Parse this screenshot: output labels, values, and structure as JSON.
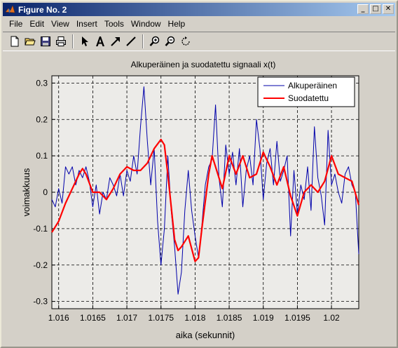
{
  "window": {
    "title": "Figure No. 2",
    "controls": {
      "minimize": "_",
      "maximize": "□",
      "close": "✕"
    }
  },
  "menu": [
    {
      "label": "File"
    },
    {
      "label": "Edit"
    },
    {
      "label": "View"
    },
    {
      "label": "Insert"
    },
    {
      "label": "Tools"
    },
    {
      "label": "Window"
    },
    {
      "label": "Help"
    }
  ],
  "toolbar_icons": [
    "new-file-icon",
    "open-folder-icon",
    "save-icon",
    "print-icon",
    "pointer-arrow-icon",
    "text-a-icon",
    "arrow-icon",
    "line-icon",
    "zoom-in-icon",
    "zoom-out-icon",
    "rotate-icon"
  ],
  "colors": {
    "original": "#0000aa",
    "filtered": "#ff0000",
    "plot_bg": "#ecebe8",
    "titlebar": "#0a246a"
  },
  "chart_data": {
    "type": "line",
    "title": "Alkuperäinen ja suodatettu signaali x(t)",
    "xlabel": "aika (sekunnit)",
    "ylabel": "voimakkuus",
    "xlim": [
      1.0159,
      1.0204
    ],
    "ylim": [
      -0.32,
      0.32
    ],
    "xticks": [
      1.016,
      1.0165,
      1.017,
      1.0175,
      1.018,
      1.0185,
      1.019,
      1.0195,
      1.02
    ],
    "xtick_labels": [
      "1.016",
      "1.0165",
      "1.017",
      "1.0175",
      "1.018",
      "1.0185",
      "1.019",
      "1.0195",
      "1.02"
    ],
    "yticks": [
      -0.3,
      -0.2,
      -0.1,
      0,
      0.1,
      0.2,
      0.3
    ],
    "ytick_labels": [
      "-0.3",
      "-0.2",
      "-0.1",
      "0",
      "0.1",
      "0.2",
      "0.3"
    ],
    "grid": true,
    "legend_position": "top-right",
    "series": [
      {
        "name": "Alkuperäinen",
        "x": [
          1.0159,
          1.01595,
          1.016,
          1.01605,
          1.0161,
          1.01615,
          1.0162,
          1.01625,
          1.0163,
          1.01635,
          1.0164,
          1.01645,
          1.0165,
          1.01655,
          1.0166,
          1.01665,
          1.0167,
          1.01675,
          1.0168,
          1.01685,
          1.0169,
          1.01695,
          1.017,
          1.01705,
          1.0171,
          1.01715,
          1.0172,
          1.01725,
          1.0173,
          1.01735,
          1.0174,
          1.01745,
          1.0175,
          1.01755,
          1.0176,
          1.01765,
          1.0177,
          1.01775,
          1.0178,
          1.01785,
          1.0179,
          1.01795,
          1.018,
          1.01805,
          1.0181,
          1.01815,
          1.0182,
          1.01825,
          1.0183,
          1.01835,
          1.0184,
          1.01845,
          1.0185,
          1.01855,
          1.0186,
          1.01865,
          1.0187,
          1.01875,
          1.0188,
          1.01885,
          1.0189,
          1.01895,
          1.019,
          1.01905,
          1.0191,
          1.01915,
          1.0192,
          1.01925,
          1.0193,
          1.01935,
          1.0194,
          1.01945,
          1.0195,
          1.01955,
          1.0196,
          1.01965,
          1.0197,
          1.01975,
          1.0198,
          1.01985,
          1.0199,
          1.01995,
          1.02,
          1.02005,
          1.0201,
          1.02015,
          1.0202,
          1.02025,
          1.0203,
          1.02035,
          1.0204
        ],
        "y": [
          -0.02,
          -0.04,
          0.01,
          -0.03,
          0.07,
          0.05,
          0.07,
          0.02,
          0.06,
          0.04,
          0.07,
          0.03,
          -0.04,
          0.02,
          -0.06,
          0.0,
          -0.02,
          0.04,
          0.02,
          -0.01,
          0.05,
          -0.01,
          0.06,
          0.03,
          0.1,
          0.05,
          0.18,
          0.29,
          0.14,
          0.02,
          0.12,
          -0.08,
          -0.2,
          -0.1,
          0.1,
          -0.05,
          -0.15,
          -0.28,
          -0.22,
          -0.05,
          0.06,
          -0.05,
          -0.12,
          -0.18,
          -0.09,
          0.02,
          0.07,
          0.09,
          0.24,
          0.04,
          -0.04,
          0.13,
          0.05,
          0.11,
          0.02,
          0.12,
          -0.04,
          0.06,
          0.1,
          0.02,
          0.2,
          0.12,
          -0.02,
          0.08,
          0.12,
          0.02,
          0.14,
          0.03,
          0.06,
          0.1,
          -0.12,
          0.06,
          -0.06,
          0.02,
          -0.02,
          0.07,
          -0.05,
          0.18,
          0.04,
          -0.01,
          -0.09,
          0.17,
          0.02,
          0.05,
          0.0,
          -0.03,
          0.05,
          0.07,
          0.02,
          0.0,
          -0.17
        ]
      },
      {
        "name": "Suodatettu",
        "x": [
          1.0159,
          1.016,
          1.0161,
          1.0162,
          1.0163,
          1.01635,
          1.0164,
          1.0165,
          1.0166,
          1.0167,
          1.0168,
          1.0169,
          1.017,
          1.0171,
          1.0172,
          1.0173,
          1.0174,
          1.0175,
          1.01755,
          1.0176,
          1.0177,
          1.01775,
          1.0178,
          1.0179,
          1.018,
          1.01805,
          1.0181,
          1.0182,
          1.01825,
          1.0183,
          1.0184,
          1.0185,
          1.0186,
          1.0187,
          1.0188,
          1.0189,
          1.019,
          1.0191,
          1.0192,
          1.0193,
          1.0194,
          1.0195,
          1.0196,
          1.0197,
          1.0198,
          1.0199,
          1.02,
          1.0201,
          1.0202,
          1.0203,
          1.0204
        ],
        "y": [
          -0.11,
          -0.08,
          -0.03,
          0.01,
          0.05,
          0.065,
          0.05,
          0.0,
          0.0,
          -0.02,
          0.01,
          0.05,
          0.07,
          0.06,
          0.06,
          0.08,
          0.12,
          0.145,
          0.13,
          0.05,
          -0.13,
          -0.16,
          -0.15,
          -0.12,
          -0.19,
          -0.18,
          -0.1,
          0.05,
          0.1,
          0.07,
          0.01,
          0.1,
          0.05,
          0.1,
          0.04,
          0.05,
          0.11,
          0.07,
          0.02,
          0.07,
          -0.01,
          -0.065,
          0.0,
          0.02,
          0.0,
          0.03,
          0.1,
          0.05,
          0.04,
          0.03,
          -0.035
        ]
      }
    ]
  }
}
